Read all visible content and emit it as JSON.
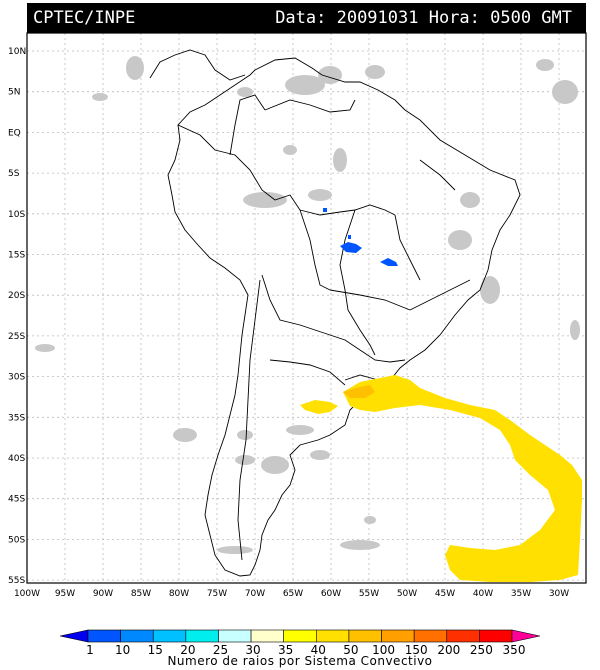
{
  "header": {
    "source": "CPTEC/INPE",
    "date_time": "Data: 20091031 Hora: 0500 GMT"
  },
  "map": {
    "lat_labels": [
      "10N",
      "5N",
      "EQ",
      "5S",
      "10S",
      "15S",
      "20S",
      "25S",
      "30S",
      "35S",
      "40S",
      "45S",
      "50S",
      "55S"
    ],
    "lon_labels": [
      "100W",
      "95W",
      "90W",
      "85W",
      "80W",
      "75W",
      "70W",
      "65W",
      "60W",
      "55W",
      "50W",
      "45W",
      "40W",
      "35W",
      "30W"
    ]
  },
  "colorbar": {
    "levels": [
      "1",
      "10",
      "15",
      "20",
      "25",
      "30",
      "35",
      "40",
      "50",
      "100",
      "150",
      "200",
      "250",
      "350"
    ],
    "colors": [
      "#0000ee",
      "#0055ff",
      "#0088ff",
      "#00c0ff",
      "#00eeee",
      "#c8ffff",
      "#ffffcc",
      "#ffff00",
      "#ffe000",
      "#ffc000",
      "#ffa000",
      "#ff7000",
      "#ff3000",
      "#ff0000",
      "#ff0099"
    ],
    "title": "Numero de raios por Sistema Convectivo"
  }
}
